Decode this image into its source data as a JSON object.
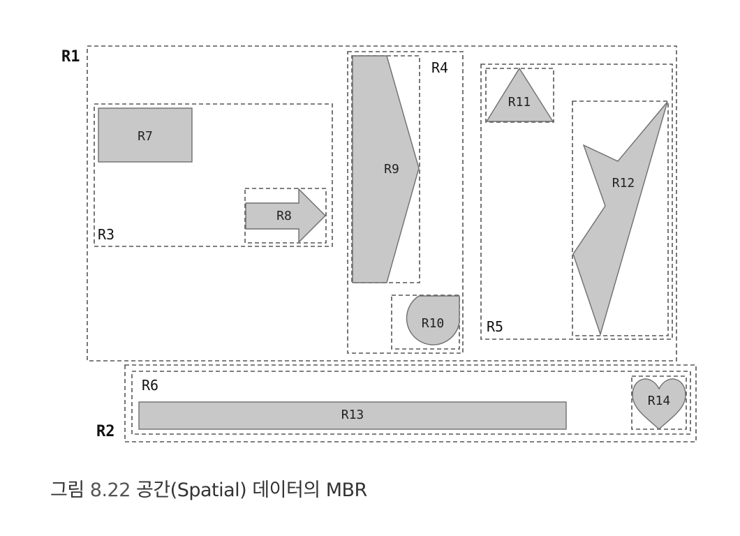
{
  "diagram": {
    "labels": {
      "r1": "R1",
      "r2": "R2",
      "r3": "R3",
      "r4": "R4",
      "r5": "R5",
      "r6": "R6",
      "r7": "R7",
      "r8": "R8",
      "r9": "R9",
      "r10": "R10",
      "r11": "R11",
      "r12": "R12",
      "r13": "R13",
      "r14": "R14"
    }
  },
  "caption": {
    "prefix": "그림",
    "number": "8.22",
    "text": "공간(Spatial) 데이터의 MBR"
  }
}
